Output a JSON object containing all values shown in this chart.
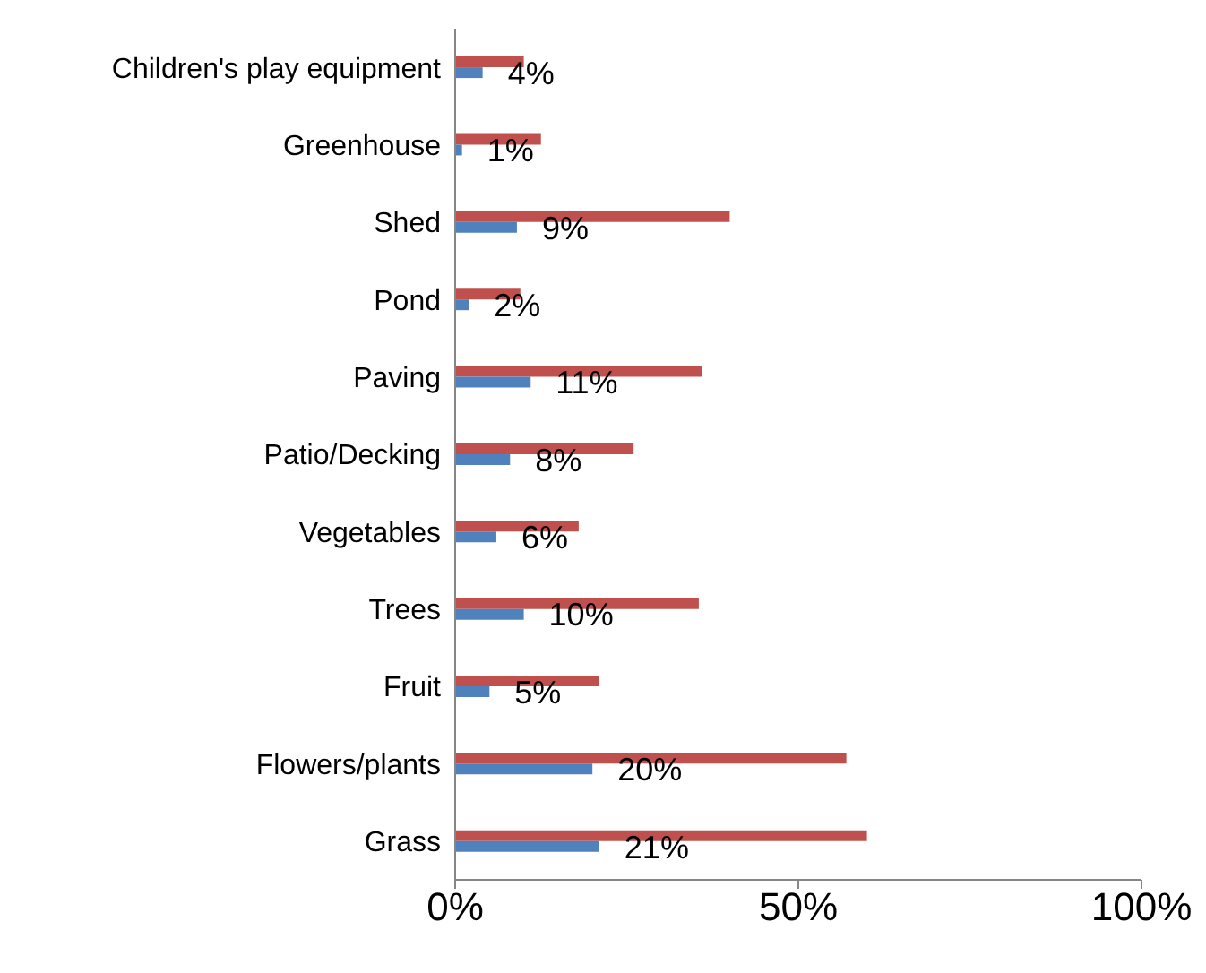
{
  "chart_data": {
    "type": "bar",
    "orientation": "horizontal",
    "categories": [
      "Children's play equipment",
      "Greenhouse",
      "Shed",
      "Pond",
      "Paving",
      "Patio/Decking",
      "Vegetables",
      "Trees",
      "Fruit",
      "Flowers/plants",
      "Grass"
    ],
    "series": [
      {
        "color": "#c0504d",
        "values": [
          10,
          12.5,
          40,
          9.5,
          36,
          26,
          18,
          35.5,
          21,
          57,
          60
        ]
      },
      {
        "color": "#4f81bd",
        "values": [
          4,
          1,
          9,
          2,
          11,
          8,
          6,
          10,
          5,
          20,
          21
        ],
        "value_labels": [
          "4%",
          "1%",
          "9%",
          "2%",
          "11%",
          "8%",
          "6%",
          "10%",
          "5%",
          "20%",
          "21%"
        ]
      }
    ],
    "xlim": [
      0,
      100
    ],
    "xticks": [
      {
        "value": 0,
        "label": "0%"
      },
      {
        "value": 50,
        "label": "50%"
      },
      {
        "value": 100,
        "label": "100%"
      }
    ],
    "grid": false,
    "legend": false
  }
}
